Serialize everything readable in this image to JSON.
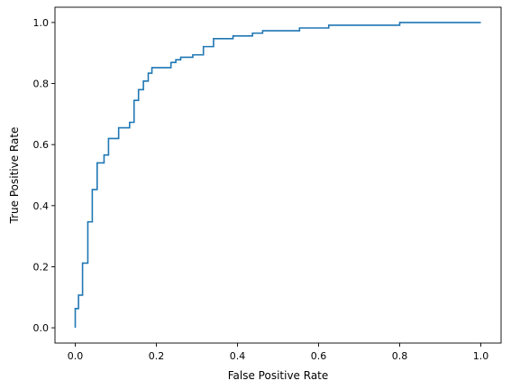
{
  "chart_data": {
    "type": "line",
    "drawstyle": "steps-post",
    "title": "",
    "xlabel": "False Positive Rate",
    "ylabel": "True Positive Rate",
    "xlim": [
      -0.05,
      1.05
    ],
    "ylim": [
      -0.05,
      1.05
    ],
    "grid": false,
    "legend": "none",
    "xticks": [
      "0.0",
      "0.2",
      "0.4",
      "0.6",
      "0.8",
      "1.0"
    ],
    "yticks": [
      "0.0",
      "0.2",
      "0.4",
      "0.6",
      "0.8",
      "1.0"
    ],
    "series": [
      {
        "color": "#1f77b4",
        "x": [
          0.0,
          0.0,
          0.008,
          0.008,
          0.018,
          0.018,
          0.031,
          0.031,
          0.042,
          0.042,
          0.054,
          0.054,
          0.071,
          0.071,
          0.082,
          0.082,
          0.107,
          0.107,
          0.134,
          0.134,
          0.145,
          0.145,
          0.156,
          0.156,
          0.168,
          0.168,
          0.18,
          0.18,
          0.189,
          0.189,
          0.236,
          0.236,
          0.248,
          0.248,
          0.26,
          0.26,
          0.29,
          0.29,
          0.316,
          0.316,
          0.341,
          0.341,
          0.389,
          0.389,
          0.437,
          0.437,
          0.462,
          0.462,
          0.553,
          0.553,
          0.625,
          0.625,
          0.8,
          0.8,
          1.0
        ],
        "y": [
          0.0,
          0.063,
          0.063,
          0.107,
          0.107,
          0.212,
          0.212,
          0.347,
          0.347,
          0.453,
          0.453,
          0.54,
          0.54,
          0.566,
          0.566,
          0.62,
          0.62,
          0.655,
          0.655,
          0.673,
          0.673,
          0.745,
          0.745,
          0.78,
          0.78,
          0.808,
          0.808,
          0.834,
          0.834,
          0.852,
          0.852,
          0.869,
          0.869,
          0.878,
          0.878,
          0.886,
          0.886,
          0.894,
          0.894,
          0.921,
          0.921,
          0.947,
          0.947,
          0.956,
          0.956,
          0.965,
          0.965,
          0.973,
          0.973,
          0.982,
          0.982,
          0.991,
          0.991,
          1.0,
          1.0
        ]
      }
    ]
  }
}
